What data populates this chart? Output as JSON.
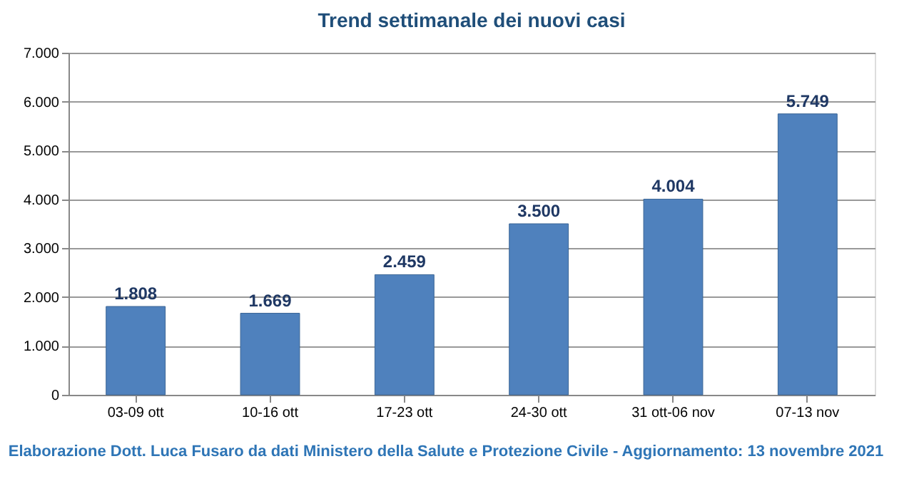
{
  "chart_data": {
    "type": "bar",
    "title": "Trend settimanale dei nuovi casi",
    "categories": [
      "03-09 ott",
      "10-16 ott",
      "17-23 ott",
      "24-30 ott",
      "31 ott-06 nov",
      "07-13 nov"
    ],
    "values": [
      1808,
      1669,
      2459,
      3500,
      4004,
      5749
    ],
    "value_labels": [
      "1.808",
      "1.669",
      "2.459",
      "3.500",
      "4.004",
      "5.749"
    ],
    "color": "#4f81bd",
    "ylim": [
      0,
      7000
    ],
    "yticks": [
      0,
      {
        "value": 1000,
        "label": "1.000"
      },
      {
        "value": 2000,
        "label": "2.000"
      },
      {
        "value": 3000,
        "label": "3.000"
      },
      {
        "value": 4000,
        "label": "4.000"
      },
      {
        "value": 5000,
        "label": "5.000"
      },
      {
        "value": 6000,
        "label": "6.000"
      },
      {
        "value": 7000,
        "label": "7.000"
      }
    ],
    "grid": "y",
    "annotations": [
      "Elaborazione Dott. Luca Fusaro da dati Ministero della Salute e Protezione Civile - Aggiornamento: 13 novembre 2021"
    ]
  }
}
